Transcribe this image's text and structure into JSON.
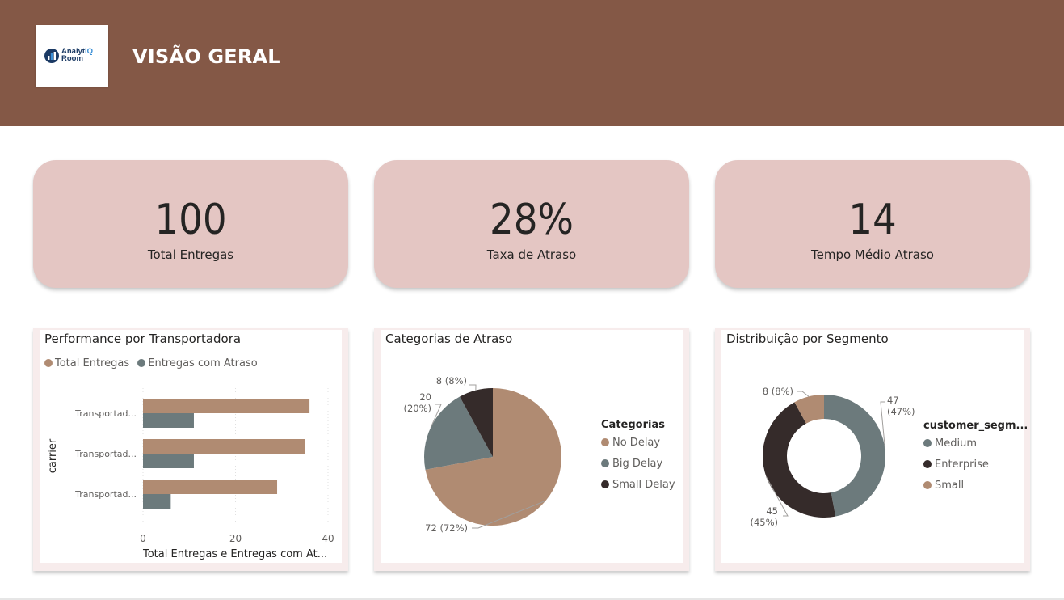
{
  "header": {
    "title": "VISÃO GERAL",
    "logo": {
      "name_part1": "Analyt",
      "name_part2": "IQ",
      "name_part3": "Room"
    }
  },
  "kpis": [
    {
      "value": "100",
      "label": "Total Entregas"
    },
    {
      "value": "28%",
      "label": "Taxa de Atraso"
    },
    {
      "value": "14",
      "label": "Tempo Médio Atraso"
    }
  ],
  "colors": {
    "header": "#845846",
    "kpi_bg": "#e4c6c3",
    "tan": "#b08b72",
    "slate": "#6c7a7c",
    "dark": "#352b2a"
  },
  "charts": {
    "carrier": {
      "title": "Performance por Transportadora",
      "legend": [
        "Total Entregas",
        "Entregas com Atraso"
      ],
      "y_axis_title": "carrier",
      "x_axis_title": "Total Entregas e Entregas com At...",
      "tick_labels": [
        "0",
        "20",
        "40"
      ]
    },
    "delay": {
      "title": "Categorias de Atraso",
      "legend_title": "Categorias"
    },
    "segment": {
      "title": "Distribuição por Segmento",
      "legend_title": "customer_segm..."
    }
  },
  "chart_data": [
    {
      "type": "bar",
      "title": "Performance por Transportadora",
      "categories": [
        "Transportad...",
        "Transportad...",
        "Transportad..."
      ],
      "series": [
        {
          "name": "Total Entregas",
          "values": [
            36,
            35,
            29
          ]
        },
        {
          "name": "Entregas com Atraso",
          "values": [
            11,
            11,
            6
          ]
        }
      ],
      "xlabel": "Total Entregas e Entregas com At...",
      "ylabel": "carrier",
      "xlim": [
        0,
        40
      ],
      "xticks": [
        0,
        20,
        40
      ],
      "legend": "top-left"
    },
    {
      "type": "pie",
      "title": "Categorias de Atraso",
      "legend_title": "Categorias",
      "slices": [
        {
          "name": "No Delay",
          "value": 72,
          "label": "72 (72%)"
        },
        {
          "name": "Big Delay",
          "value": 20,
          "label": "20 (20%)"
        },
        {
          "name": "Small Delay",
          "value": 8,
          "label": "8 (8%)"
        }
      ],
      "legend": "right"
    },
    {
      "type": "pie",
      "subtype": "donut",
      "title": "Distribuição por Segmento",
      "legend_title": "customer_segm...",
      "slices": [
        {
          "name": "Medium",
          "value": 47,
          "label": "47 (47%)"
        },
        {
          "name": "Enterprise",
          "value": 45,
          "label": "45 (45%)"
        },
        {
          "name": "Small",
          "value": 8,
          "label": "8 (8%)"
        }
      ],
      "legend": "right"
    }
  ]
}
